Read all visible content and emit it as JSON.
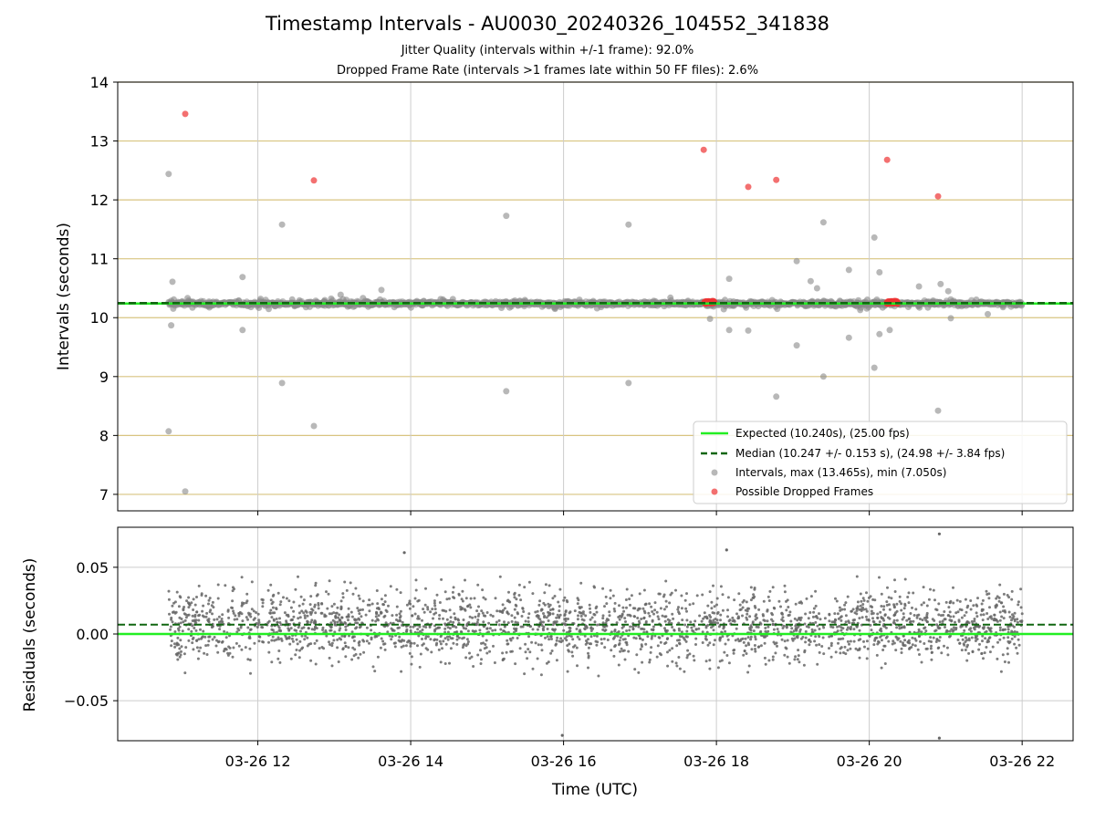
{
  "chart_data": [
    {
      "type": "scatter",
      "title": "Timestamp Intervals - AU0030_20240326_104552_341838",
      "subtitle_lines": [
        "Jitter Quality (intervals within +/-1 frame): 92.0%",
        "Dropped Frame Rate (intervals >1 frames late within 50 FF files): 2.6%"
      ],
      "xlabel": "",
      "ylabel": "Intervals (seconds)",
      "xlim": [
        "2024-03-26 10:10",
        "2024-03-26 22:40"
      ],
      "ylim": [
        6.72,
        14.0
      ],
      "yticks": [
        "7",
        "8",
        "9",
        "10",
        "11",
        "12",
        "13",
        "14"
      ],
      "grid": true,
      "legend_position": "lower-right",
      "legend": [
        "Expected (10.240s), (25.00 fps)",
        "Median (10.247 +/- 0.153 s), (24.98 +/- 3.84 fps)",
        "Intervals, max (13.465s), min (7.050s)",
        "Possible Dropped Frames"
      ],
      "expected_line": 10.24,
      "median_line": 10.247,
      "colors": {
        "expected": "#22ee22",
        "median": "#116611",
        "intervals": "#888888",
        "dropped": "#ee3333",
        "hgrid": "#d8c480",
        "vgrid": "#cccccc"
      },
      "baseline_band": {
        "from": "2024-03-26 10:50",
        "to": "2024-03-26 22:00",
        "y": 10.24
      },
      "dropped_clusters": [
        {
          "from": "2024-03-26 17:51",
          "to": "2024-03-26 17:58",
          "y": 10.26
        },
        {
          "from": "2024-03-26 20:14",
          "to": "2024-03-26 20:22",
          "y": 10.26
        }
      ],
      "interval_outliers": [
        {
          "t": "2024-03-26 10:50",
          "y": 12.44
        },
        {
          "t": "2024-03-26 10:53",
          "y": 10.61
        },
        {
          "t": "2024-03-26 10:52",
          "y": 9.87
        },
        {
          "t": "2024-03-26 10:50",
          "y": 8.07
        },
        {
          "t": "2024-03-26 11:03",
          "y": 7.05
        },
        {
          "t": "2024-03-26 11:48",
          "y": 10.69
        },
        {
          "t": "2024-03-26 11:48",
          "y": 9.79
        },
        {
          "t": "2024-03-26 12:19",
          "y": 11.58
        },
        {
          "t": "2024-03-26 12:19",
          "y": 8.89
        },
        {
          "t": "2024-03-26 12:44",
          "y": 8.16
        },
        {
          "t": "2024-03-26 13:05",
          "y": 10.39
        },
        {
          "t": "2024-03-26 13:37",
          "y": 10.47
        },
        {
          "t": "2024-03-26 15:15",
          "y": 11.73
        },
        {
          "t": "2024-03-26 15:15",
          "y": 8.75
        },
        {
          "t": "2024-03-26 16:51",
          "y": 11.58
        },
        {
          "t": "2024-03-26 16:51",
          "y": 8.89
        },
        {
          "t": "2024-03-26 17:55",
          "y": 9.98
        },
        {
          "t": "2024-03-26 18:10",
          "y": 10.66
        },
        {
          "t": "2024-03-26 18:10",
          "y": 9.79
        },
        {
          "t": "2024-03-26 18:25",
          "y": 9.78
        },
        {
          "t": "2024-03-26 18:47",
          "y": 8.66
        },
        {
          "t": "2024-03-26 19:03",
          "y": 10.96
        },
        {
          "t": "2024-03-26 19:03",
          "y": 9.53
        },
        {
          "t": "2024-03-26 19:14",
          "y": 10.62
        },
        {
          "t": "2024-03-26 19:19",
          "y": 10.5
        },
        {
          "t": "2024-03-26 19:24",
          "y": 11.62
        },
        {
          "t": "2024-03-26 19:24",
          "y": 9.0
        },
        {
          "t": "2024-03-26 19:44",
          "y": 10.81
        },
        {
          "t": "2024-03-26 19:44",
          "y": 9.66
        },
        {
          "t": "2024-03-26 20:04",
          "y": 11.36
        },
        {
          "t": "2024-03-26 20:04",
          "y": 9.15
        },
        {
          "t": "2024-03-26 20:08",
          "y": 10.77
        },
        {
          "t": "2024-03-26 20:08",
          "y": 9.72
        },
        {
          "t": "2024-03-26 20:16",
          "y": 9.79
        },
        {
          "t": "2024-03-26 20:39",
          "y": 10.53
        },
        {
          "t": "2024-03-26 20:56",
          "y": 10.57
        },
        {
          "t": "2024-03-26 21:02",
          "y": 10.45
        },
        {
          "t": "2024-03-26 21:04",
          "y": 9.99
        },
        {
          "t": "2024-03-26 20:54",
          "y": 8.42
        },
        {
          "t": "2024-03-26 21:33",
          "y": 10.06
        }
      ],
      "dropped_points": [
        {
          "t": "2024-03-26 11:03",
          "y": 13.46
        },
        {
          "t": "2024-03-26 12:44",
          "y": 12.33
        },
        {
          "t": "2024-03-26 17:50",
          "y": 12.85
        },
        {
          "t": "2024-03-26 18:25",
          "y": 12.22
        },
        {
          "t": "2024-03-26 18:47",
          "y": 12.34
        },
        {
          "t": "2024-03-26 20:14",
          "y": 12.68
        },
        {
          "t": "2024-03-26 20:54",
          "y": 12.06
        }
      ]
    },
    {
      "type": "scatter",
      "title": "",
      "xlabel": "Time (UTC)",
      "ylabel": "Residuals (seconds)",
      "xlim": [
        "2024-03-26 10:10",
        "2024-03-26 22:40"
      ],
      "ylim": [
        -0.08,
        0.08
      ],
      "yticks": [
        {
          "label": "0.05",
          "value": 0.05
        },
        {
          "label": "0.00",
          "value": 0.0
        },
        {
          "label": "−0.05",
          "value": -0.05
        }
      ],
      "xticks": [
        {
          "label": "03-26 12",
          "t": "2024-03-26 12:00"
        },
        {
          "label": "03-26 14",
          "t": "2024-03-26 14:00"
        },
        {
          "label": "03-26 16",
          "t": "2024-03-26 16:00"
        },
        {
          "label": "03-26 18",
          "t": "2024-03-26 18:00"
        },
        {
          "label": "03-26 20",
          "t": "2024-03-26 20:00"
        },
        {
          "label": "03-26 22",
          "t": "2024-03-26 22:00"
        }
      ],
      "grid": true,
      "expected_line": 0.0,
      "median_line": 0.007,
      "residual_spread": {
        "from": "2024-03-26 10:50",
        "to": "2024-03-26 22:00",
        "center": 0.007,
        "spread": 0.025,
        "min": -0.078,
        "max": 0.075
      },
      "residual_extremes": [
        {
          "t": "2024-03-26 20:55",
          "y": 0.075
        },
        {
          "t": "2024-03-26 20:55",
          "y": -0.078
        },
        {
          "t": "2024-03-26 15:59",
          "y": -0.076
        },
        {
          "t": "2024-03-26 18:08",
          "y": 0.063
        },
        {
          "t": "2024-03-26 13:55",
          "y": 0.061
        }
      ]
    }
  ]
}
